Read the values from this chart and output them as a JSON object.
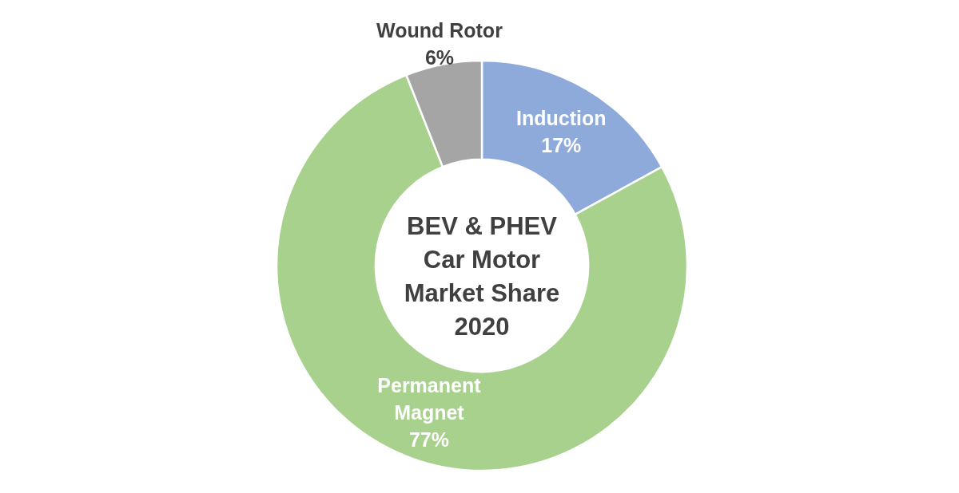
{
  "chart_data": {
    "type": "donut",
    "title": "BEV & PHEV Car Motor Market Share 2020",
    "categories": [
      "Induction",
      "Permanent Magnet",
      "Wound Rotor"
    ],
    "values": [
      17,
      77,
      6
    ],
    "colors": [
      "#8eaadb",
      "#a9d18e",
      "#a5a5a5"
    ],
    "value_labels": [
      "17%",
      "77%",
      "6%"
    ]
  }
}
